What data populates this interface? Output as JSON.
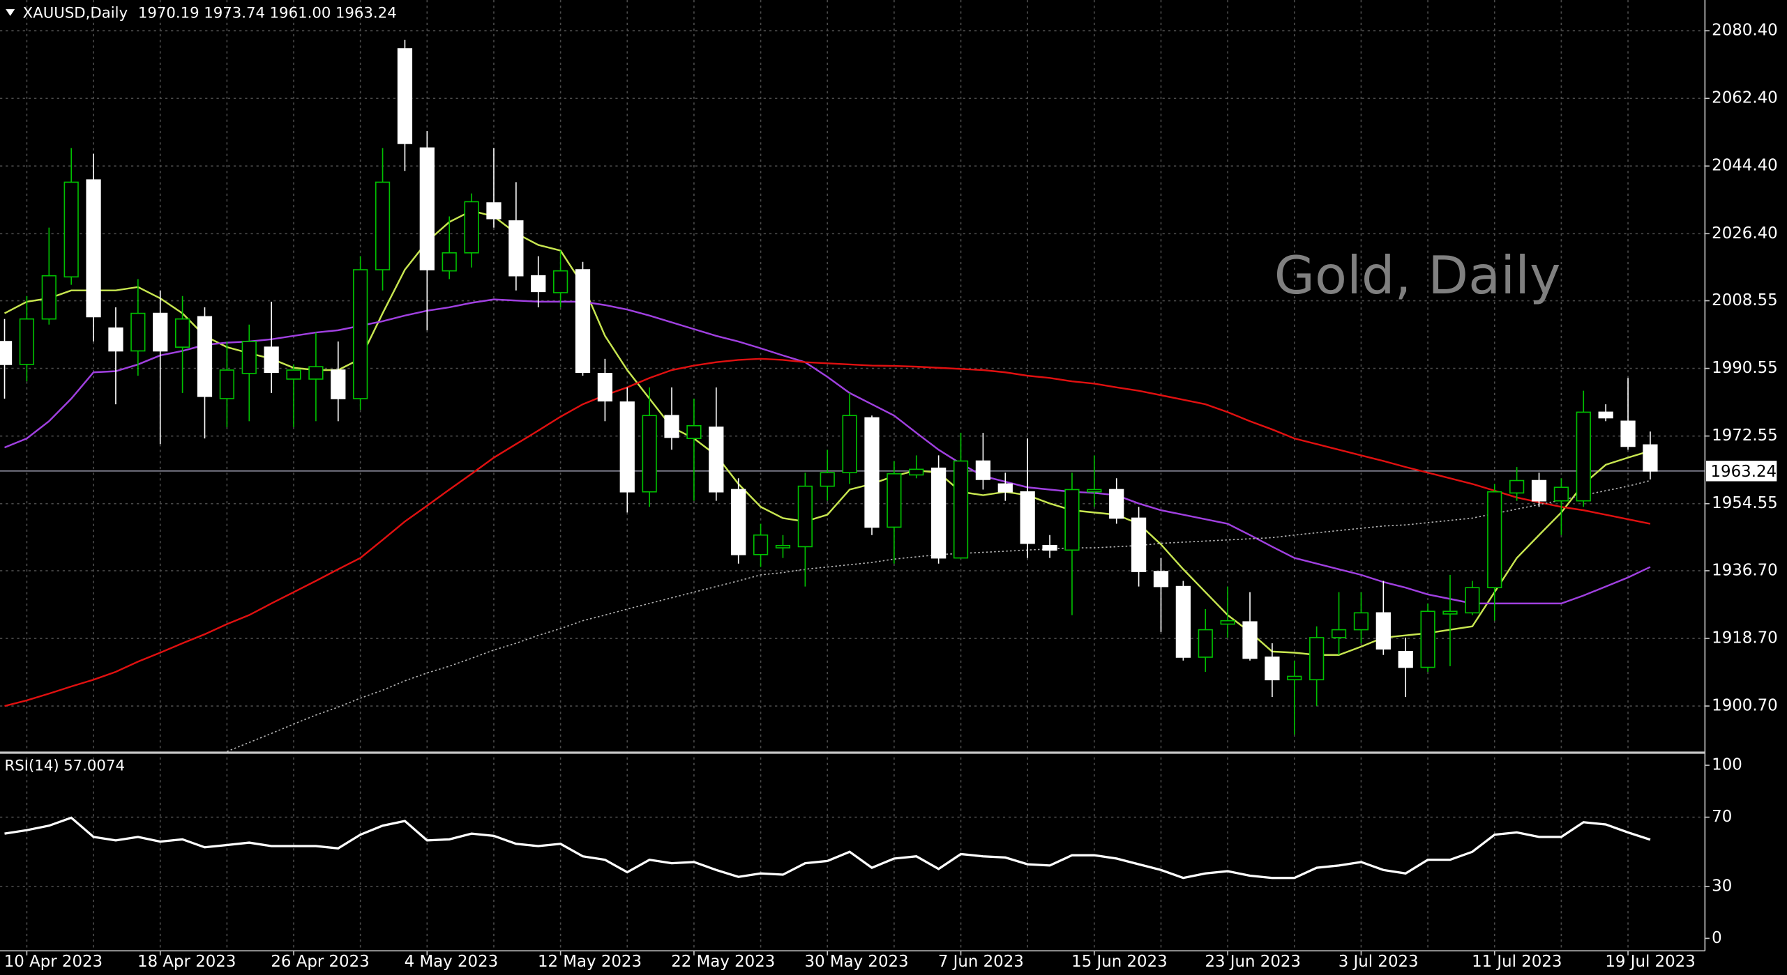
{
  "chart_data": {
    "type": "candlestick",
    "symbol": "XAUUSD,Daily",
    "title": "Gold, Daily",
    "last_labels": {
      "open": "1970.19",
      "high": "1973.74",
      "low": "1961.00",
      "close": "1963.24"
    },
    "categories": [
      null,
      "10 Apr 2023",
      null,
      null,
      null,
      null,
      null,
      "18 Apr 2023",
      null,
      null,
      null,
      null,
      null,
      "26 Apr 2023",
      null,
      null,
      null,
      null,
      null,
      "4 May 2023",
      null,
      null,
      null,
      null,
      null,
      "12 May 2023",
      null,
      null,
      null,
      null,
      null,
      "22 May 2023",
      null,
      null,
      null,
      null,
      null,
      "30 May 2023",
      null,
      null,
      null,
      null,
      null,
      "7 Jun 2023",
      null,
      null,
      null,
      null,
      null,
      "15 Jun 2023",
      null,
      null,
      null,
      null,
      null,
      "23 Jun 2023",
      null,
      null,
      null,
      null,
      null,
      "3 Jul 2023",
      null,
      null,
      null,
      null,
      null,
      "11 Jul 2023",
      null,
      null,
      null,
      null,
      null,
      "19 Jul 2023",
      null
    ],
    "open": [
      1997.7,
      1991.6,
      2003.7,
      2014.9,
      2040.7,
      2001.3,
      1995.2,
      2005.2,
      1996.2,
      2004.3,
      1982.5,
      1989.2,
      1996.2,
      1987.7,
      1987.7,
      1990.1,
      1982.5,
      2016.8,
      2075.6,
      2049.2,
      2016.5,
      2021.3,
      2034.6,
      2029.8,
      2015.2,
      2010.7,
      2016.8,
      1989.2,
      1981.6,
      1957.7,
      1978.0,
      1971.9,
      1974.9,
      1958.3,
      1941.0,
      1942.8,
      1943.1,
      1959.2,
      1962.8,
      1977.4,
      1948.3,
      1962.2,
      1964.0,
      1940.1,
      1965.9,
      1959.8,
      1957.7,
      1943.4,
      1942.2,
      1957.7,
      1958.3,
      1950.7,
      1936.5,
      1932.5,
      1913.7,
      1922.5,
      1923.1,
      1913.7,
      1907.7,
      1907.7,
      1918.9,
      1921.0,
      1925.5,
      1915.2,
      1911.0,
      1925.2,
      1925.5,
      1932.2,
      1957.4,
      1960.7,
      1955.3,
      1955.3,
      1978.9,
      1976.5,
      1970.19
    ],
    "high": [
      2003.7,
      2009.8,
      2028.0,
      2049.2,
      2047.7,
      2006.8,
      2014.3,
      2011.3,
      2009.8,
      2006.8,
      1997.7,
      2002.2,
      2008.3,
      1991.6,
      2000.1,
      1997.7,
      2020.4,
      2049.2,
      2078.0,
      2053.7,
      2031.0,
      2037.1,
      2049.2,
      2040.1,
      2020.4,
      2021.9,
      2018.9,
      1993.1,
      1985.5,
      1985.5,
      1985.5,
      1982.5,
      1985.5,
      1961.3,
      1949.2,
      1946.2,
      1962.8,
      1968.9,
      1984.0,
      1978.0,
      1965.9,
      1967.4,
      1967.4,
      1973.4,
      1973.4,
      1962.8,
      1971.9,
      1946.2,
      1962.8,
      1967.4,
      1961.3,
      1953.7,
      1940.1,
      1934.0,
      1926.5,
      1932.5,
      1931.0,
      1917.4,
      1912.8,
      1921.9,
      1931.0,
      1931.0,
      1934.0,
      1918.9,
      1928.0,
      1935.6,
      1934.0,
      1959.8,
      1964.3,
      1962.8,
      1961.3,
      1984.6,
      1981.0,
      1988.0,
      1973.74
    ],
    "low": [
      1982.5,
      1987.1,
      2002.2,
      2012.8,
      1997.7,
      1981.0,
      1988.6,
      1970.4,
      1984.0,
      1971.9,
      1974.9,
      1976.5,
      1984.0,
      1974.9,
      1976.5,
      1976.5,
      1979.5,
      2011.3,
      2043.1,
      2000.7,
      2014.3,
      2017.4,
      2028.0,
      2011.3,
      2006.8,
      2006.8,
      1988.6,
      1976.5,
      1952.2,
      1953.7,
      1968.9,
      1955.3,
      1955.3,
      1938.6,
      1937.7,
      1940.1,
      1932.5,
      1955.3,
      1959.8,
      1946.2,
      1938.6,
      1961.3,
      1938.6,
      1940.1,
      1958.3,
      1955.3,
      1940.1,
      1940.1,
      1924.9,
      1953.7,
      1949.2,
      1932.5,
      1920.4,
      1912.8,
      1909.8,
      1918.9,
      1912.8,
      1903.1,
      1893.1,
      1900.7,
      1914.3,
      1917.4,
      1914.3,
      1903.1,
      1909.8,
      1911.3,
      1924.9,
      1923.4,
      1955.3,
      1953.7,
      1946.2,
      1953.7,
      1976.5,
      1968.9,
      1961
    ],
    "close": [
      1991.6,
      2003.7,
      2015.2,
      2040.1,
      2004.3,
      1995.2,
      2005.2,
      1995.2,
      2003.7,
      1983.1,
      1990.1,
      1997.7,
      1989.5,
      1990.1,
      1991.0,
      1982.5,
      2016.8,
      2040.1,
      2050.4,
      2016.8,
      2021.3,
      2034.9,
      2030.4,
      2015.2,
      2011.0,
      2016.5,
      1989.5,
      1981.9,
      1957.7,
      1978.0,
      1972.2,
      1975.3,
      1957.7,
      1941.0,
      1946.2,
      1943.4,
      1959.2,
      1962.8,
      1978.0,
      1948.3,
      1962.5,
      1963.7,
      1940.1,
      1965.9,
      1961.0,
      1957.7,
      1944.0,
      1942.2,
      1958.3,
      1958.3,
      1950.7,
      1936.5,
      1932.5,
      1913.7,
      1921.0,
      1923.4,
      1913.4,
      1907.7,
      1908.6,
      1918.9,
      1921.0,
      1925.5,
      1915.9,
      1911.0,
      1925.9,
      1925.9,
      1932.2,
      1957.7,
      1960.7,
      1955.3,
      1958.9,
      1978.9,
      1977.4,
      1969.8,
      1963.24
    ],
    "up_color": "#00c000",
    "down_color": "#ffffff",
    "price_line_color": "#8c8c9c",
    "grid": true,
    "ylim": [
      1888.58,
      2088.58
    ],
    "yticks": [
      {
        "value": 2080.4,
        "label": "2080.40"
      },
      {
        "value": 2062.4,
        "label": "2062.40"
      },
      {
        "value": 2044.4,
        "label": "2044.40"
      },
      {
        "value": 2026.4,
        "label": "2026.40"
      },
      2008.55,
      1990.55,
      1972.55,
      1954.55,
      {
        "value": 1936.7,
        "label": "1936.70"
      },
      {
        "value": 1918.7,
        "label": "1918.70"
      },
      {
        "value": 1900.7,
        "label": "1900.70"
      }
    ],
    "series": [
      {
        "color": "#c8e650",
        "style": "solid",
        "values": [
          2005.2,
          2008.3,
          2009.2,
          2011.3,
          2011.3,
          2011.3,
          2012.2,
          2009.2,
          2005.2,
          1999.2,
          1996.2,
          1994.6,
          1993.1,
          1990.7,
          1990.1,
          1990.1,
          1993.1,
          2005.2,
          2016.8,
          2024.3,
          2029.5,
          2032.5,
          2031.0,
          2026.5,
          2023.4,
          2021.9,
          2012.8,
          1999.2,
          1990.1,
          1982.5,
          1974.9,
          1971.9,
          1967.4,
          1959.8,
          1953.7,
          1950.7,
          1949.8,
          1951.6,
          1958.3,
          1959.8,
          1961.9,
          1963.4,
          1962.8,
          1957.7,
          1956.8,
          1957.7,
          1956.8,
          1954.6,
          1952.8,
          1952.2,
          1951.6,
          1949.2,
          1943.7,
          1937.1,
          1931.0,
          1924.9,
          1920.4,
          1915.2,
          1914.9,
          1914.3,
          1914.3,
          1916.5,
          1918.9,
          1919.5,
          1920.1,
          1921.0,
          1921.9,
          1931.0,
          1940.1,
          1946.2,
          1952.2,
          1959.8,
          1964.9,
          1966.8,
          1968.6
        ]
      },
      {
        "color": "#a040e0",
        "style": "solid",
        "values": [
          1969.5,
          1971.9,
          1976.5,
          1982.5,
          1989.5,
          1989.8,
          1991.6,
          1994.0,
          1995.2,
          1996.8,
          1997.4,
          1997.7,
          1998.3,
          1999.2,
          2000.1,
          2000.7,
          2001.9,
          2003.1,
          2004.6,
          2005.9,
          2006.8,
          2008.0,
          2008.9,
          2008.6,
          2008.3,
          2008.3,
          2008.3,
          2007.4,
          2006.2,
          2004.6,
          2002.8,
          2001.0,
          1999.2,
          1997.7,
          1995.9,
          1994.0,
          1992.2,
          1988.3,
          1984.0,
          1981.0,
          1978.0,
          1973.4,
          1968.9,
          1965.2,
          1961.9,
          1960.4,
          1958.9,
          1958.3,
          1957.7,
          1957.4,
          1956.8,
          1954.6,
          1952.8,
          1951.6,
          1950.4,
          1949.2,
          1946.2,
          1943.1,
          1940.1,
          1938.6,
          1937.1,
          1935.6,
          1933.7,
          1932.2,
          1930.4,
          1929.2,
          1928.0,
          1928.0,
          1928.0,
          1928.0,
          1928.0,
          1930.1,
          1932.5,
          1934.9,
          1937.7
        ]
      },
      {
        "color": "#e01010",
        "style": "solid",
        "values": [
          1900.7,
          1902.2,
          1904.0,
          1905.9,
          1907.7,
          1909.8,
          1912.5,
          1914.9,
          1917.4,
          1919.8,
          1922.5,
          1924.9,
          1928.0,
          1931.0,
          1934.0,
          1937.1,
          1940.1,
          1944.9,
          1949.8,
          1954.0,
          1958.3,
          1962.5,
          1966.8,
          1970.4,
          1974.0,
          1977.7,
          1981.0,
          1983.4,
          1985.5,
          1988.0,
          1990.1,
          1991.3,
          1992.2,
          1992.8,
          1993.1,
          1992.8,
          1992.2,
          1991.9,
          1991.6,
          1991.3,
          1991.2,
          1991.0,
          1990.7,
          1990.4,
          1990.1,
          1989.5,
          1988.6,
          1988.0,
          1987.1,
          1986.5,
          1985.5,
          1984.6,
          1983.4,
          1982.2,
          1981.0,
          1978.9,
          1976.5,
          1974.3,
          1971.9,
          1970.4,
          1968.9,
          1967.4,
          1965.9,
          1964.3,
          1962.8,
          1961.3,
          1959.8,
          1958.0,
          1956.2,
          1954.9,
          1953.7,
          1952.8,
          1951.6,
          1950.4,
          1949.2
        ]
      },
      {
        "color": "#b4b4b4",
        "style": "dotted",
        "values": [
          null,
          null,
          null,
          null,
          null,
          null,
          null,
          null,
          null,
          null,
          1888.6,
          1891.0,
          1893.4,
          1895.9,
          1898.3,
          1900.4,
          1902.8,
          1904.9,
          1907.4,
          1909.5,
          1911.3,
          1913.4,
          1915.6,
          1917.4,
          1919.5,
          1921.3,
          1923.4,
          1924.9,
          1926.5,
          1928.0,
          1929.5,
          1931.0,
          1932.5,
          1934.0,
          1935.6,
          1936.2,
          1937.1,
          1937.7,
          1938.3,
          1938.9,
          1939.8,
          1940.4,
          1941.0,
          1941.3,
          1941.6,
          1941.9,
          1942.2,
          1942.5,
          1942.8,
          1942.8,
          1943.1,
          1943.4,
          1944.0,
          1944.3,
          1944.6,
          1944.9,
          1945.2,
          1945.5,
          1946.2,
          1946.8,
          1947.4,
          1948.0,
          1948.6,
          1948.9,
          1949.5,
          1950.1,
          1950.7,
          1951.9,
          1953.1,
          1954.3,
          1955.5,
          1956.8,
          1958.0,
          1959.2,
          1960.7
        ]
      }
    ],
    "rsi": {
      "name": "RSI(14)",
      "color": "#ffffff",
      "ylim": [
        -9.2,
        106.6
      ],
      "yticks": [
        100,
        70,
        30,
        0
      ],
      "values": [
        60.5,
        62.5,
        65.1,
        69.7,
        58.6,
        56.6,
        58.6,
        55.9,
        57.2,
        52.6,
        53.9,
        55.3,
        53.3,
        53.3,
        53.3,
        52.0,
        59.9,
        65.1,
        67.8,
        56.6,
        57.2,
        60.5,
        59.2,
        54.6,
        53.3,
        54.6,
        47.4,
        45.4,
        38.2,
        45.4,
        43.4,
        44.1,
        39.5,
        35.5,
        37.5,
        36.8,
        43.4,
        44.7,
        50.0,
        40.8,
        46.1,
        47.4,
        40.1,
        48.7,
        47.4,
        46.7,
        42.8,
        42.1,
        48.0,
        48.0,
        46.1,
        42.8,
        39.5,
        34.9,
        37.5,
        38.8,
        36.2,
        34.9,
        34.9,
        40.8,
        42.1,
        44.1,
        39.5,
        37.5,
        45.4,
        45.4,
        50.0,
        59.9,
        61.2,
        58.6,
        58.6,
        67.1,
        65.8,
        61.2,
        57.0074
      ]
    }
  }
}
